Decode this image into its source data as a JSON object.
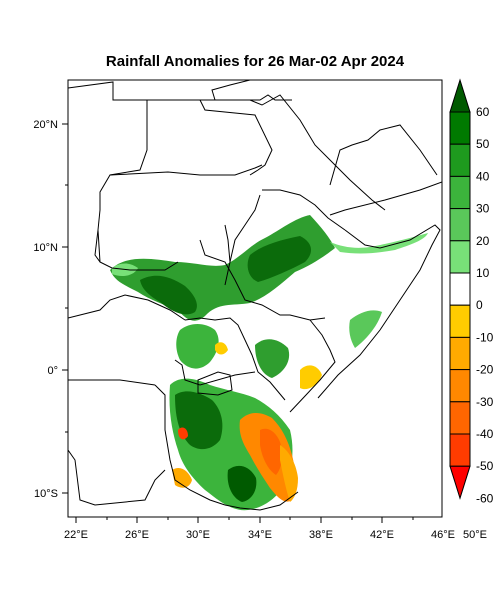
{
  "title": "Rainfall Anomalies for 26 Mar-02 Apr 2024",
  "axes": {
    "lon_labels": [
      "22°E",
      "26°E",
      "30°E",
      "34°E",
      "38°E",
      "42°E",
      "46°E",
      "50°E"
    ],
    "lat_labels": [
      "20°N",
      "10°N",
      "0°",
      "10°S"
    ]
  },
  "colorbar": {
    "labels": [
      "60",
      "50",
      "40",
      "30",
      "20",
      "10",
      "0",
      "-10",
      "-20",
      "-30",
      "-40",
      "-50",
      "-60"
    ],
    "colors": [
      "#005a00",
      "#007a00",
      "#1e9a1e",
      "#3cb43c",
      "#5ac85a",
      "#78e078",
      "#ffffff",
      "#ffcc00",
      "#ffaa00",
      "#ff8800",
      "#ff6600",
      "#ff3c00",
      "#ff0000"
    ]
  }
}
